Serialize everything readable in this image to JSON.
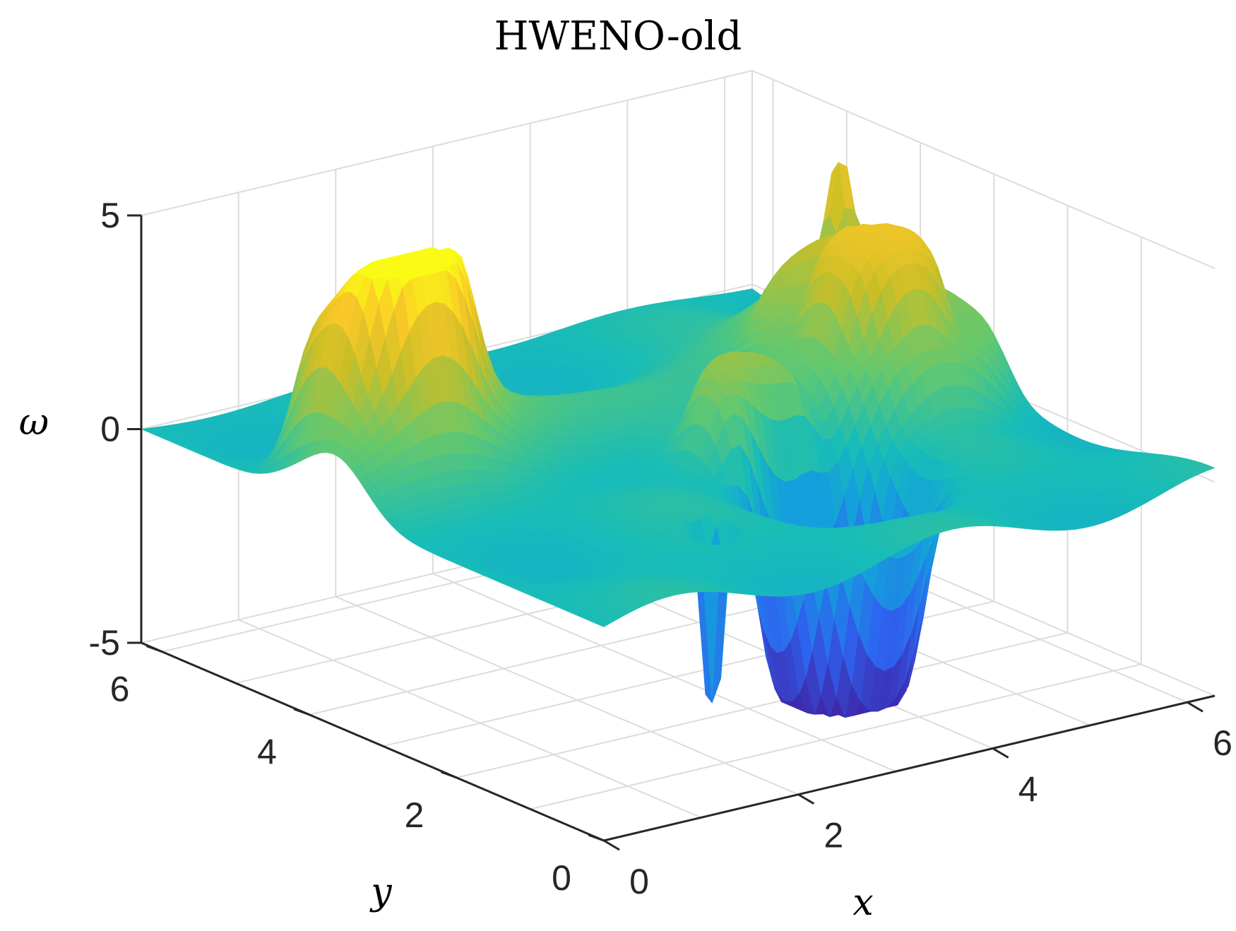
{
  "chart_data": {
    "type": "surface3d",
    "title": "HWENO-old",
    "xlabel": "x",
    "ylabel": "y",
    "zlabel": "ω",
    "xlim": [
      0,
      6.2832
    ],
    "ylim": [
      0,
      6.2832
    ],
    "zlim": [
      -5,
      5
    ],
    "xticks": [
      "0",
      "2",
      "4",
      "6"
    ],
    "yticks": [
      "0",
      "2",
      "4",
      "6"
    ],
    "zticks": [
      "-5",
      "0",
      "5"
    ],
    "grid": true,
    "colormap": "parula",
    "colors": {
      "axis": "#262626",
      "grid": "#dcdcdc",
      "colormap_low": "#3e26a8",
      "colormap_mid": "#18bcb8",
      "colormap_high": "#f9fb15"
    },
    "features": [
      {
        "name": "positive ring",
        "x": 1.0,
        "y": 4.3,
        "z": 3.9
      },
      {
        "name": "positive ring",
        "x": 5.3,
        "y": 3.3,
        "z": 4.3
      },
      {
        "name": "positive block",
        "x": 3.6,
        "y": 2.7,
        "z": 1.2
      },
      {
        "name": "negative dip",
        "x": 3.7,
        "y": 1.7,
        "z": -4.8
      },
      {
        "name": "negative spike",
        "x": 2.1,
        "y": 1.3,
        "z": -5.0
      },
      {
        "name": "negative spike",
        "x": 5.6,
        "y": 3.8,
        "z": -3.5
      },
      {
        "name": "ridge",
        "x": 4.2,
        "y": 4.0,
        "z": 2.6
      },
      {
        "name": "edge spike",
        "x": 6.0,
        "y": 4.8,
        "z": 2.5
      }
    ]
  }
}
